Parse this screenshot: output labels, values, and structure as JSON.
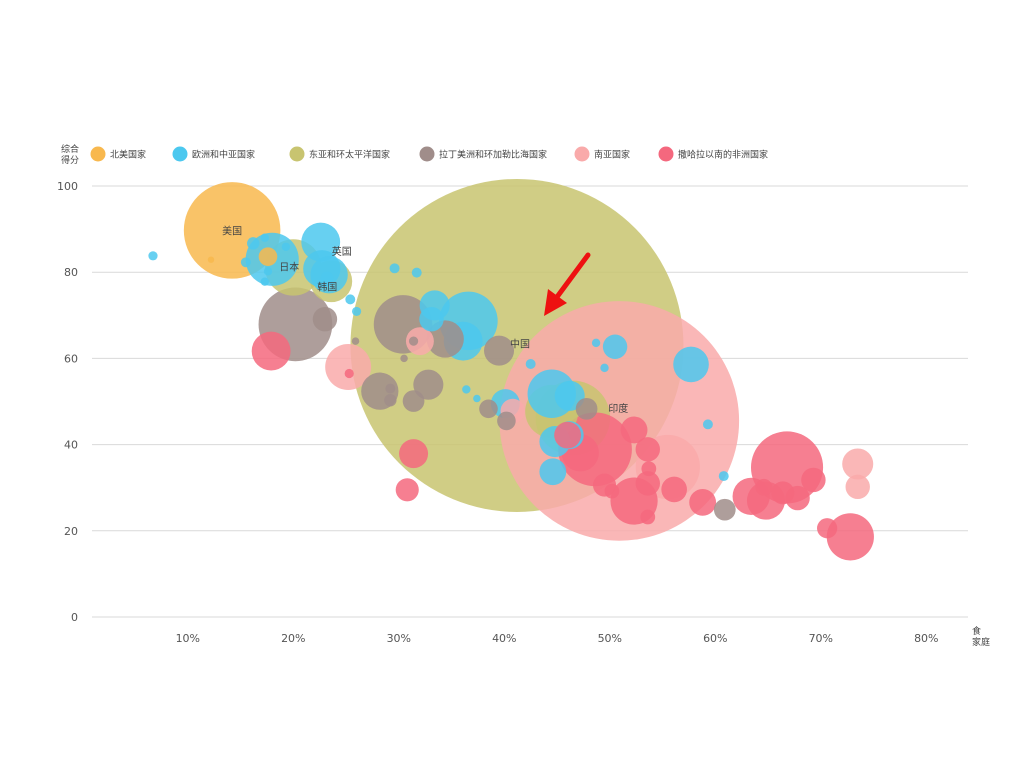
{
  "chart_data": {
    "type": "scatter",
    "title": "",
    "xlabel": "食 家庭",
    "ylabel": "综合 得分",
    "xlim": [
      0,
      80
    ],
    "ylim": [
      0,
      100
    ],
    "x_ticks": [
      "10%",
      "20%",
      "30%",
      "40%",
      "50%",
      "60%",
      "70%",
      "80%"
    ],
    "y_ticks": [
      "0",
      "20",
      "40",
      "60",
      "80",
      "100"
    ],
    "grid": true,
    "legend_position": "top-left",
    "series": [
      {
        "name": "北美国家",
        "color": "#F8B84E",
        "points": [
          {
            "x": 14.2,
            "y": 89.7,
            "size": 780,
            "label": "美国"
          },
          {
            "x": 12.2,
            "y": 82.9,
            "size": 2
          },
          {
            "x": 17.6,
            "y": 83.6,
            "size": 25
          }
        ]
      },
      {
        "name": "欧洲和中亚国家",
        "color": "#4CC8EF",
        "points": [
          {
            "x": 6.7,
            "y": 83.8,
            "size": 5
          },
          {
            "x": 18.0,
            "y": 83.0,
            "size": 230
          },
          {
            "x": 16.2,
            "y": 86.7,
            "size": 10
          },
          {
            "x": 15.5,
            "y": 82.3,
            "size": 6
          },
          {
            "x": 17.3,
            "y": 88.0,
            "size": 4
          },
          {
            "x": 17.3,
            "y": 77.8,
            "size": 4
          },
          {
            "x": 17.6,
            "y": 80.2,
            "size": 4
          },
          {
            "x": 19.3,
            "y": 85.9,
            "size": 4
          },
          {
            "x": 22.6,
            "y": 87.0,
            "size": 120
          },
          {
            "x": 22.7,
            "y": 80.8,
            "size": 110,
            "label": "英国"
          },
          {
            "x": 23.4,
            "y": 79.4,
            "size": 110
          },
          {
            "x": 29.6,
            "y": 80.9,
            "size": 6
          },
          {
            "x": 31.7,
            "y": 79.9,
            "size": 6
          },
          {
            "x": 23.2,
            "y": 78.7,
            "size": 10
          },
          {
            "x": 25.4,
            "y": 73.7,
            "size": 6
          },
          {
            "x": 26.0,
            "y": 70.9,
            "size": 5
          },
          {
            "x": 33.4,
            "y": 72.3,
            "size": 70
          },
          {
            "x": 33.1,
            "y": 69.1,
            "size": 45
          },
          {
            "x": 36.6,
            "y": 68.7,
            "size": 280
          },
          {
            "x": 36.1,
            "y": 64.0,
            "size": 120
          },
          {
            "x": 37.4,
            "y": 50.7,
            "size": 3
          },
          {
            "x": 36.4,
            "y": 52.8,
            "size": 4
          },
          {
            "x": 40.1,
            "y": 49.5,
            "size": 65
          },
          {
            "x": 42.5,
            "y": 58.7,
            "size": 6
          },
          {
            "x": 44.5,
            "y": 51.8,
            "size": 190
          },
          {
            "x": 46.2,
            "y": 51.3,
            "size": 70
          },
          {
            "x": 46.2,
            "y": 42.2,
            "size": 60
          },
          {
            "x": 44.8,
            "y": 40.7,
            "size": 75
          },
          {
            "x": 44.6,
            "y": 33.7,
            "size": 55
          },
          {
            "x": 50.5,
            "y": 62.7,
            "size": 45
          },
          {
            "x": 48.7,
            "y": 63.6,
            "size": 4
          },
          {
            "x": 49.5,
            "y": 57.8,
            "size": 4
          },
          {
            "x": 57.7,
            "y": 58.6,
            "size": 100
          },
          {
            "x": 59.3,
            "y": 44.7,
            "size": 6
          },
          {
            "x": 60.8,
            "y": 32.7,
            "size": 6
          }
        ]
      },
      {
        "name": "东亚和环太平洋国家",
        "color": "#C8C470",
        "points": [
          {
            "x": 20.0,
            "y": 81.1,
            "size": 260,
            "label": "日本"
          },
          {
            "x": 23.6,
            "y": 77.9,
            "size": 140,
            "label": "韩国"
          },
          {
            "x": 41.2,
            "y": 63.0,
            "size": 9500,
            "label": "中国"
          },
          {
            "x": 44.5,
            "y": 47.7,
            "size": 230
          },
          {
            "x": 46.5,
            "y": 46.2,
            "size": 460
          }
        ]
      },
      {
        "name": "拉丁美洲和环加勒比海国家",
        "color": "#A08D8A",
        "points": [
          {
            "x": 20.2,
            "y": 67.9,
            "size": 450
          },
          {
            "x": 23.0,
            "y": 69.1,
            "size": 45
          },
          {
            "x": 25.9,
            "y": 64.0,
            "size": 3
          },
          {
            "x": 30.4,
            "y": 67.9,
            "size": 280
          },
          {
            "x": 31.4,
            "y": 64.0,
            "size": 5
          },
          {
            "x": 34.4,
            "y": 64.5,
            "size": 110
          },
          {
            "x": 30.5,
            "y": 60.0,
            "size": 3
          },
          {
            "x": 29.2,
            "y": 53.0,
            "size": 6
          },
          {
            "x": 28.2,
            "y": 52.4,
            "size": 110
          },
          {
            "x": 29.2,
            "y": 50.3,
            "size": 10
          },
          {
            "x": 31.4,
            "y": 50.1,
            "size": 35
          },
          {
            "x": 32.8,
            "y": 53.9,
            "size": 70
          },
          {
            "x": 38.5,
            "y": 48.3,
            "size": 25
          },
          {
            "x": 39.5,
            "y": 61.8,
            "size": 70
          },
          {
            "x": 40.2,
            "y": 45.5,
            "size": 25
          },
          {
            "x": 47.8,
            "y": 48.3,
            "size": 35
          },
          {
            "x": 60.9,
            "y": 24.9,
            "size": 35
          }
        ]
      },
      {
        "name": "南亚国家",
        "color": "#F9AAAA",
        "points": [
          {
            "x": 25.2,
            "y": 58.0,
            "size": 170
          },
          {
            "x": 32.0,
            "y": 64.0,
            "size": 60
          },
          {
            "x": 40.8,
            "y": 47.8,
            "size": 45
          },
          {
            "x": 50.9,
            "y": 45.5,
            "size": 4900,
            "label": "印度"
          },
          {
            "x": 55.5,
            "y": 34.8,
            "size": 340
          },
          {
            "x": 73.5,
            "y": 35.5,
            "size": 75
          },
          {
            "x": 73.5,
            "y": 30.2,
            "size": 45
          }
        ]
      },
      {
        "name": "撒哈拉以南的非洲国家",
        "color": "#F4687E",
        "points": [
          {
            "x": 25.3,
            "y": 56.5,
            "size": 5
          },
          {
            "x": 17.9,
            "y": 61.7,
            "size": 120
          },
          {
            "x": 31.4,
            "y": 37.9,
            "size": 65
          },
          {
            "x": 30.8,
            "y": 29.5,
            "size": 40
          },
          {
            "x": 46.0,
            "y": 42.2,
            "size": 55
          },
          {
            "x": 47.2,
            "y": 38.1,
            "size": 110
          },
          {
            "x": 48.6,
            "y": 38.9,
            "size": 450
          },
          {
            "x": 52.3,
            "y": 43.4,
            "size": 55
          },
          {
            "x": 53.6,
            "y": 38.9,
            "size": 45
          },
          {
            "x": 49.5,
            "y": 30.6,
            "size": 40
          },
          {
            "x": 50.2,
            "y": 29.2,
            "size": 15
          },
          {
            "x": 52.3,
            "y": 26.9,
            "size": 180
          },
          {
            "x": 53.7,
            "y": 34.4,
            "size": 15
          },
          {
            "x": 53.6,
            "y": 31.0,
            "size": 45
          },
          {
            "x": 53.6,
            "y": 23.2,
            "size": 15
          },
          {
            "x": 56.1,
            "y": 29.6,
            "size": 50
          },
          {
            "x": 58.8,
            "y": 26.6,
            "size": 55
          },
          {
            "x": 63.4,
            "y": 28.0,
            "size": 110
          },
          {
            "x": 64.6,
            "y": 30.1,
            "size": 20
          },
          {
            "x": 64.8,
            "y": 27.0,
            "size": 115
          },
          {
            "x": 66.4,
            "y": 28.8,
            "size": 40
          },
          {
            "x": 66.8,
            "y": 34.7,
            "size": 430
          },
          {
            "x": 67.8,
            "y": 27.6,
            "size": 45
          },
          {
            "x": 69.3,
            "y": 31.8,
            "size": 45
          },
          {
            "x": 70.6,
            "y": 20.6,
            "size": 30
          },
          {
            "x": 72.8,
            "y": 18.6,
            "size": 180
          }
        ]
      }
    ]
  }
}
